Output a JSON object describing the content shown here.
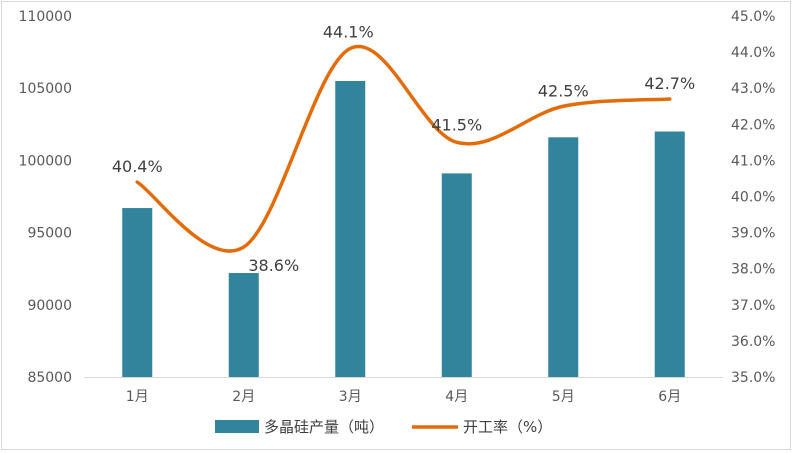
{
  "chart_data": {
    "type": "bar",
    "categories": [
      "1月",
      "2月",
      "3月",
      "4月",
      "5月",
      "6月"
    ],
    "series": [
      {
        "name": "多晶硅产量（吨）",
        "type": "bar",
        "axis": "left",
        "color": "#31849b",
        "values": [
          96700,
          92200,
          105500,
          99100,
          101600,
          102000
        ]
      },
      {
        "name": "开工率（%）",
        "type": "line",
        "axis": "right",
        "color": "#e36c0a",
        "values": [
          40.4,
          38.6,
          44.1,
          41.5,
          42.5,
          42.7
        ],
        "labels": [
          "40.4%",
          "38.6%",
          "44.1%",
          "41.5%",
          "42.5%",
          "42.7%"
        ]
      }
    ],
    "y_left": {
      "min": 85000,
      "max": 110000,
      "step": 5000,
      "ticks": [
        "85000",
        "90000",
        "95000",
        "100000",
        "105000",
        "110000"
      ]
    },
    "y_right": {
      "min": 35.0,
      "max": 45.0,
      "step": 1.0,
      "ticks": [
        "35.0%",
        "36.0%",
        "37.0%",
        "38.0%",
        "39.0%",
        "40.0%",
        "41.0%",
        "42.0%",
        "43.0%",
        "44.0%",
        "45.0%"
      ]
    },
    "grid": false,
    "legend": "bottom"
  }
}
